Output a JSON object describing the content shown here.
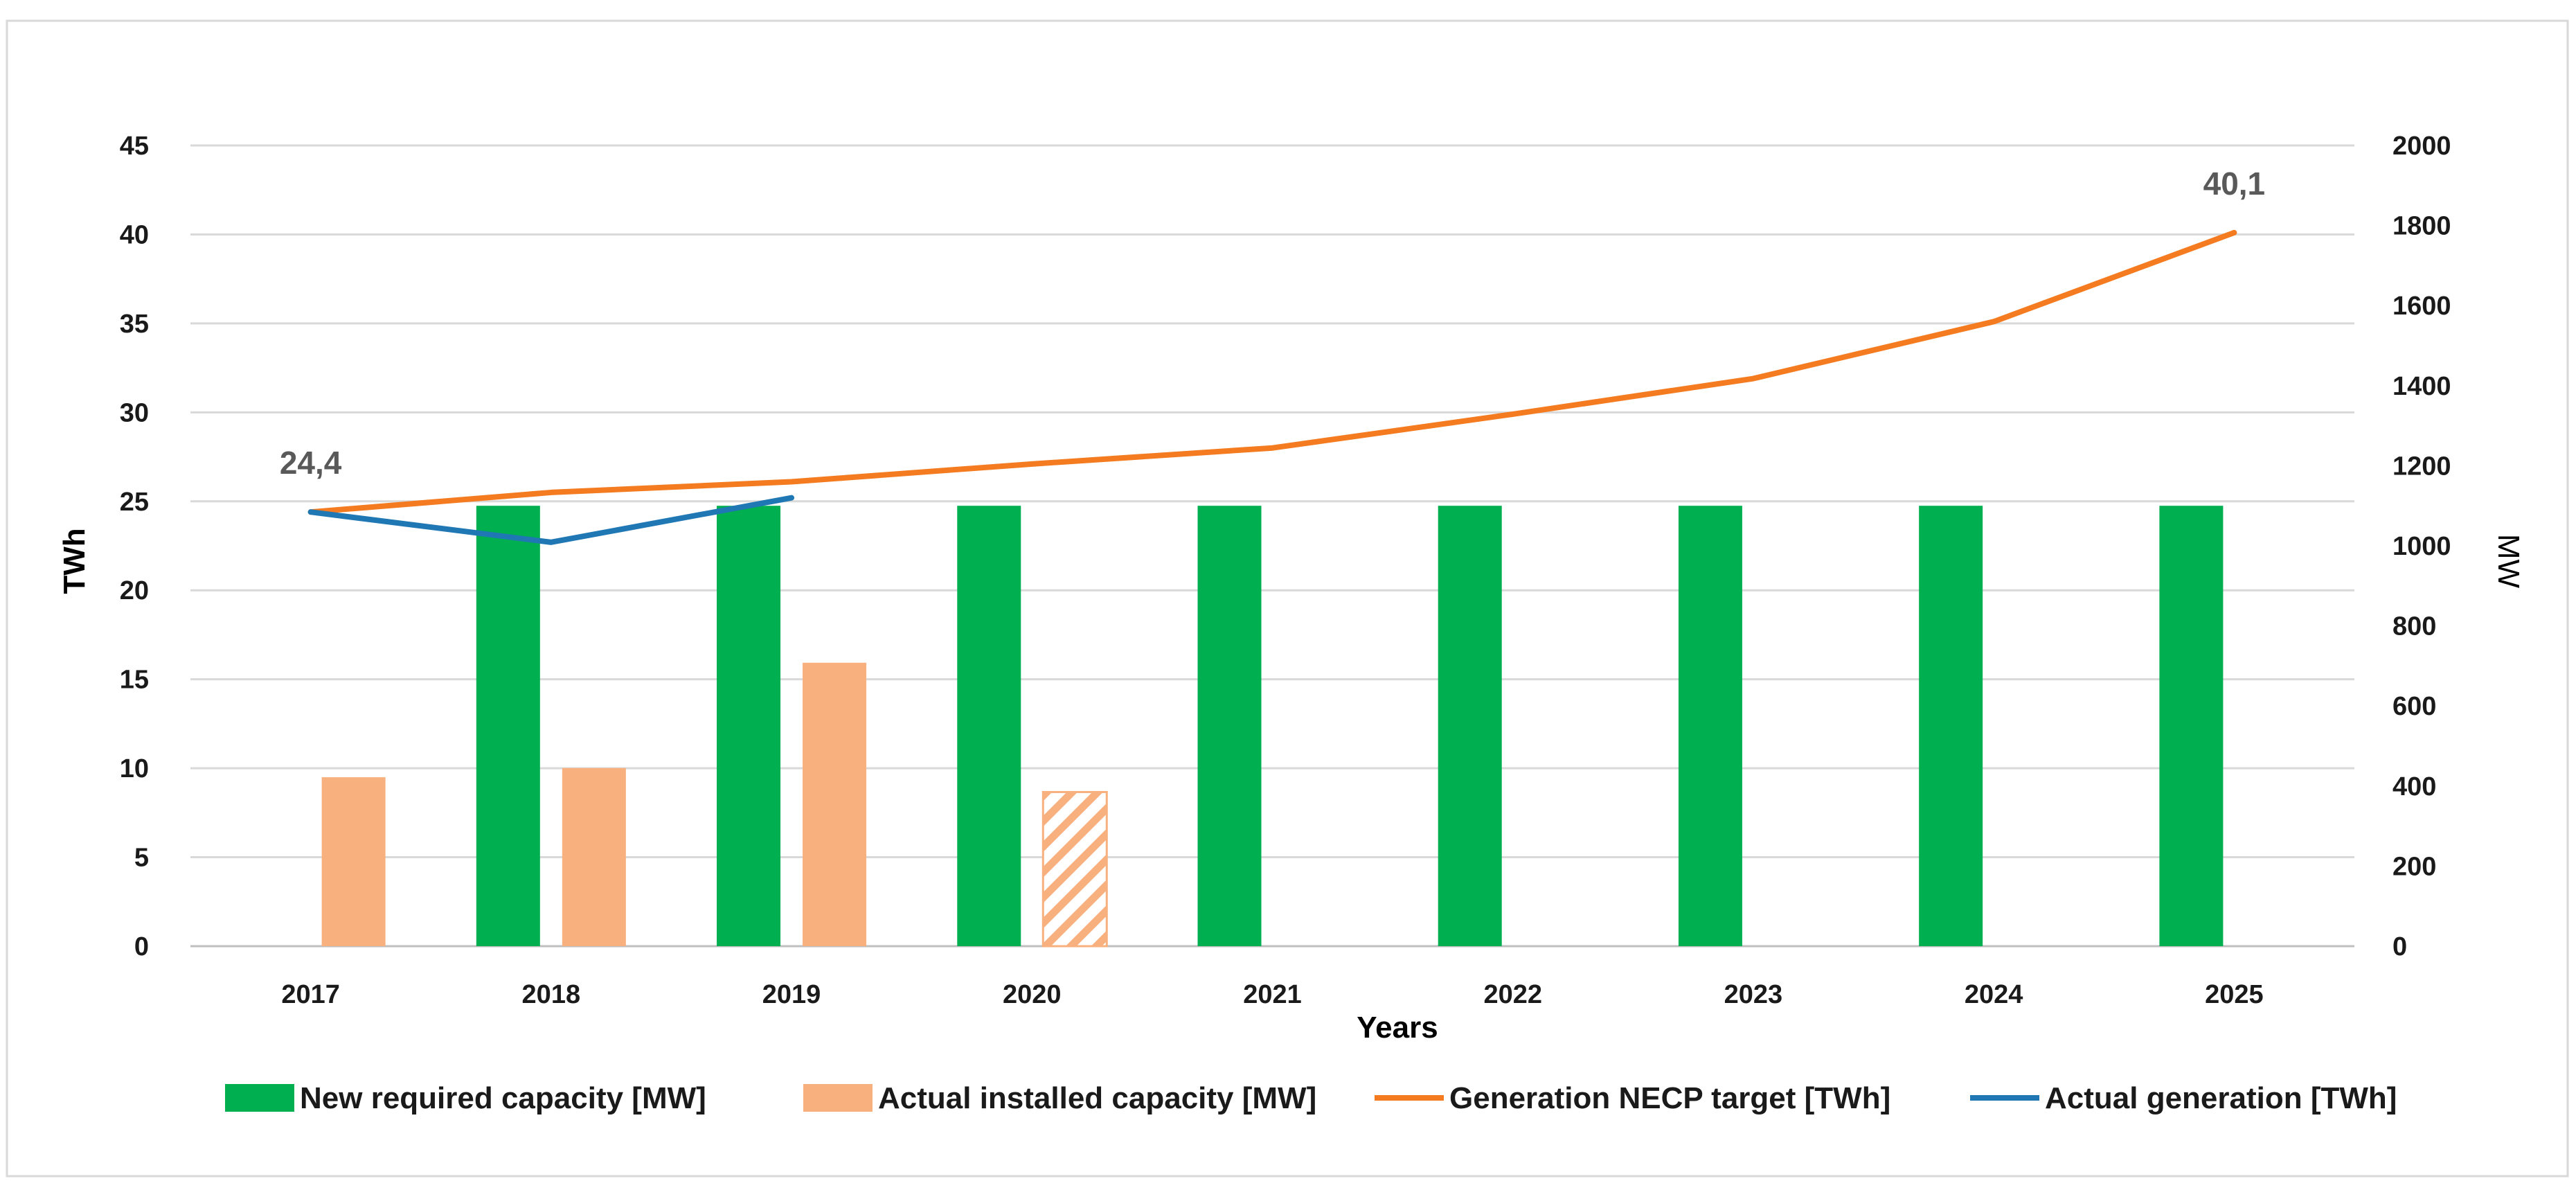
{
  "chart_data": {
    "type": "bar+line",
    "categories": [
      "2017",
      "2018",
      "2019",
      "2020",
      "2021",
      "2022",
      "2023",
      "2024",
      "2025"
    ],
    "xlabel": "Years",
    "ylabel_left": "TWh",
    "ylabel_right": "MW",
    "ylim_left": [
      0,
      45
    ],
    "yticks_left": [
      0,
      5,
      10,
      15,
      20,
      25,
      30,
      35,
      40,
      45
    ],
    "ylim_right": [
      0,
      2000
    ],
    "yticks_right": [
      0,
      200,
      400,
      600,
      800,
      1000,
      1200,
      1400,
      1600,
      1800,
      2000
    ],
    "grid": true,
    "legend_position": "bottom",
    "series": [
      {
        "name": "New required capacity [MW]",
        "kind": "bar",
        "axis": "right",
        "color": "#00b050",
        "values": [
          null,
          1100,
          1100,
          1100,
          1100,
          1100,
          1100,
          1100,
          1100
        ]
      },
      {
        "name": "Actual installed capacity  [MW]",
        "kind": "bar",
        "axis": "right",
        "color": "#f8b07f",
        "values": [
          422,
          445,
          708,
          385,
          null,
          null,
          null,
          null,
          null
        ],
        "hatched_categories": [
          "2020"
        ]
      },
      {
        "name": "Generation NECP target [TWh]",
        "kind": "line",
        "axis": "left",
        "color": "#f47b20",
        "values": [
          24.4,
          25.5,
          26.1,
          27.1,
          28.0,
          29.9,
          31.9,
          35.1,
          40.1
        ]
      },
      {
        "name": "Actual generation [TWh]",
        "kind": "line",
        "axis": "left",
        "color": "#1f77b4",
        "values": [
          24.4,
          22.7,
          25.2,
          null,
          null,
          null,
          null,
          null,
          null
        ]
      }
    ],
    "annotations": [
      {
        "text": "24,4",
        "category": "2017",
        "value": 24.4
      },
      {
        "text": "40,1",
        "category": "2025",
        "value": 40.1
      }
    ]
  }
}
